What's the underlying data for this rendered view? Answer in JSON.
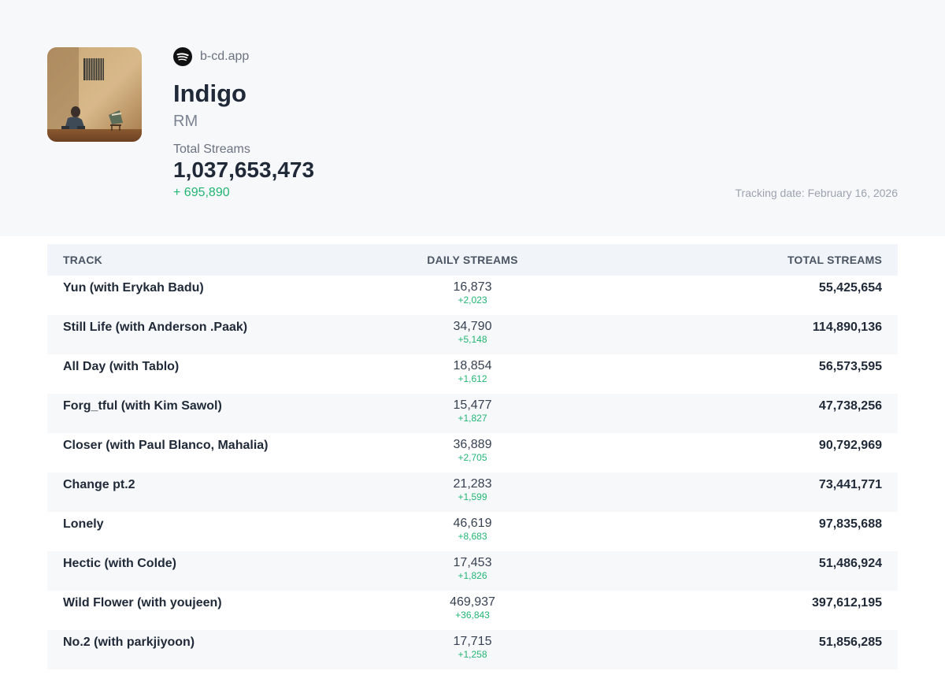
{
  "header": {
    "source": "b-cd.app",
    "source_icon": "spotify-icon",
    "album_title": "Indigo",
    "artist": "RM",
    "total_streams_label": "Total Streams",
    "total_streams_value": "1,037,653,473",
    "total_streams_delta": "+ 695,890",
    "tracking_label": "Tracking date:",
    "tracking_date": "February 16, 2026"
  },
  "colors": {
    "accent_green": "#22b573",
    "header_bg": "#f7f8fa",
    "table_header_bg": "#f1f4f8"
  },
  "table": {
    "columns": [
      "TRACK",
      "DAILY STREAMS",
      "TOTAL STREAMS"
    ],
    "rows": [
      {
        "track": "Yun (with Erykah Badu)",
        "daily": "16,873",
        "daily_delta": "+2,023",
        "total": "55,425,654"
      },
      {
        "track": "Still Life (with Anderson .Paak)",
        "daily": "34,790",
        "daily_delta": "+5,148",
        "total": "114,890,136"
      },
      {
        "track": "All Day (with Tablo)",
        "daily": "18,854",
        "daily_delta": "+1,612",
        "total": "56,573,595"
      },
      {
        "track": "Forg_tful (with Kim Sawol)",
        "daily": "15,477",
        "daily_delta": "+1,827",
        "total": "47,738,256"
      },
      {
        "track": "Closer (with Paul Blanco, Mahalia)",
        "daily": "36,889",
        "daily_delta": "+2,705",
        "total": "90,792,969"
      },
      {
        "track": "Change pt.2",
        "daily": "21,283",
        "daily_delta": "+1,599",
        "total": "73,441,771"
      },
      {
        "track": "Lonely",
        "daily": "46,619",
        "daily_delta": "+8,683",
        "total": "97,835,688"
      },
      {
        "track": "Hectic (with Colde)",
        "daily": "17,453",
        "daily_delta": "+1,826",
        "total": "51,486,924"
      },
      {
        "track": "Wild Flower (with youjeen)",
        "daily": "469,937",
        "daily_delta": "+36,843",
        "total": "397,612,195"
      },
      {
        "track": "No.2 (with parkjiyoon)",
        "daily": "17,715",
        "daily_delta": "+1,258",
        "total": "51,856,285"
      }
    ]
  }
}
